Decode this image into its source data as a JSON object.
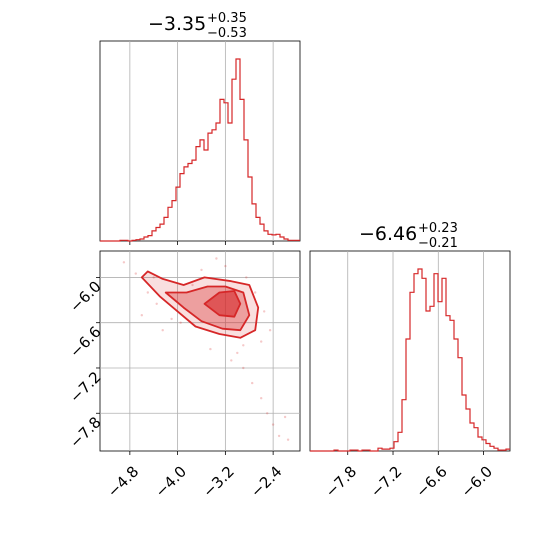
{
  "chart_data": [
    {
      "type": "histogram",
      "panel": "top-left",
      "title": {
        "value": "−3.35",
        "upper": "+0.35",
        "lower": "−0.53"
      },
      "xlim": [
        -5.3,
        -1.95
      ],
      "x_ticks": [
        -4.8,
        -4.0,
        -3.2,
        -2.4
      ],
      "grid": true,
      "color": "#d62728",
      "bin_start": -5.3,
      "bin_width": 0.067,
      "counts": [
        0,
        0,
        0,
        0,
        0,
        1,
        1,
        0,
        1,
        2,
        3,
        6,
        8,
        15,
        20,
        25,
        35,
        50,
        60,
        80,
        100,
        110,
        115,
        120,
        140,
        150,
        135,
        160,
        165,
        175,
        210,
        205,
        175,
        240,
        270,
        210,
        150,
        95,
        55,
        35,
        25,
        15,
        10,
        9,
        10,
        6,
        3,
        1,
        1,
        1
      ]
    },
    {
      "type": "histogram",
      "panel": "bottom-right",
      "title": {
        "value": "−6.46",
        "upper": "+0.23",
        "lower": "−0.21"
      },
      "xlim": [
        -8.3,
        -5.65
      ],
      "x_ticks": [
        -7.8,
        -7.2,
        -6.6,
        -6.0
      ],
      "x_tick_labels": [
        "−7.8",
        "−7.2",
        "−6.6",
        "−6.0"
      ],
      "grid": true,
      "color": "#d62728",
      "bin_start": -8.3,
      "bin_width": 0.053,
      "counts": [
        0,
        0,
        0,
        0,
        0,
        0,
        1,
        0,
        0,
        0,
        1,
        1,
        0,
        1,
        1,
        0,
        0,
        3,
        2,
        2,
        3,
        10,
        20,
        55,
        120,
        170,
        190,
        195,
        185,
        150,
        155,
        190,
        160,
        185,
        145,
        140,
        120,
        100,
        60,
        45,
        30,
        25,
        15,
        12,
        8,
        5,
        3,
        1,
        1,
        2
      ]
    },
    {
      "type": "contour",
      "panel": "bottom-left",
      "xlim": [
        -5.3,
        -1.95
      ],
      "ylim": [
        -8.3,
        -5.65
      ],
      "x_ticks": [
        -4.8,
        -4.0,
        -3.2,
        -2.4
      ],
      "x_tick_labels": [
        "−4.8",
        "−4.0",
        "−3.2",
        "−2.4"
      ],
      "y_ticks": [
        -6.0,
        -6.6,
        -7.2,
        -7.8
      ],
      "y_tick_labels": [
        "−6.0",
        "−6.6",
        "−7.2",
        "−7.8"
      ],
      "grid": true,
      "color": "#d62728",
      "contours": [
        {
          "level": "outer",
          "points": [
            [
              -4.6,
              -6.0
            ],
            [
              -4.3,
              -6.25
            ],
            [
              -4.0,
              -6.45
            ],
            [
              -3.7,
              -6.65
            ],
            [
              -3.3,
              -6.75
            ],
            [
              -2.95,
              -6.8
            ],
            [
              -2.7,
              -6.7
            ],
            [
              -2.65,
              -6.4
            ],
            [
              -2.8,
              -6.1
            ],
            [
              -3.1,
              -6.05
            ],
            [
              -3.55,
              -6.0
            ],
            [
              -3.9,
              -6.1
            ],
            [
              -4.25,
              -6.02
            ],
            [
              -4.5,
              -5.92
            ]
          ]
        },
        {
          "level": "middle",
          "points": [
            [
              -4.2,
              -6.2
            ],
            [
              -3.9,
              -6.4
            ],
            [
              -3.6,
              -6.58
            ],
            [
              -3.25,
              -6.68
            ],
            [
              -2.95,
              -6.7
            ],
            [
              -2.8,
              -6.5
            ],
            [
              -2.9,
              -6.2
            ],
            [
              -3.2,
              -6.12
            ],
            [
              -3.5,
              -6.12
            ],
            [
              -3.85,
              -6.2
            ]
          ]
        },
        {
          "level": "inner",
          "points": [
            [
              -3.55,
              -6.35
            ],
            [
              -3.3,
              -6.5
            ],
            [
              -3.05,
              -6.52
            ],
            [
              -2.95,
              -6.35
            ],
            [
              -3.05,
              -6.18
            ],
            [
              -3.3,
              -6.2
            ]
          ]
        }
      ],
      "samples": [
        [
          -4.9,
          -5.8
        ],
        [
          -4.7,
          -5.95
        ],
        [
          -4.5,
          -6.2
        ],
        [
          -4.35,
          -6.35
        ],
        [
          -4.1,
          -6.55
        ],
        [
          -3.95,
          -6.6
        ],
        [
          -3.75,
          -6.1
        ],
        [
          -3.6,
          -5.9
        ],
        [
          -3.35,
          -5.75
        ],
        [
          -3.2,
          -5.85
        ],
        [
          -2.85,
          -6.0
        ],
        [
          -2.7,
          -6.2
        ],
        [
          -2.55,
          -6.45
        ],
        [
          -2.45,
          -6.7
        ],
        [
          -2.6,
          -6.85
        ],
        [
          -2.9,
          -6.9
        ],
        [
          -3.0,
          -7.0
        ],
        [
          -2.9,
          -7.2
        ],
        [
          -2.75,
          -7.4
        ],
        [
          -2.6,
          -7.6
        ],
        [
          -2.5,
          -7.8
        ],
        [
          -2.4,
          -7.95
        ],
        [
          -2.3,
          -8.1
        ],
        [
          -4.6,
          -6.5
        ],
        [
          -4.25,
          -6.7
        ],
        [
          -4.4,
          -6.0
        ],
        [
          -3.45,
          -6.95
        ],
        [
          -3.1,
          -7.1
        ],
        [
          -2.2,
          -7.85
        ],
        [
          -2.15,
          -8.15
        ]
      ]
    }
  ]
}
